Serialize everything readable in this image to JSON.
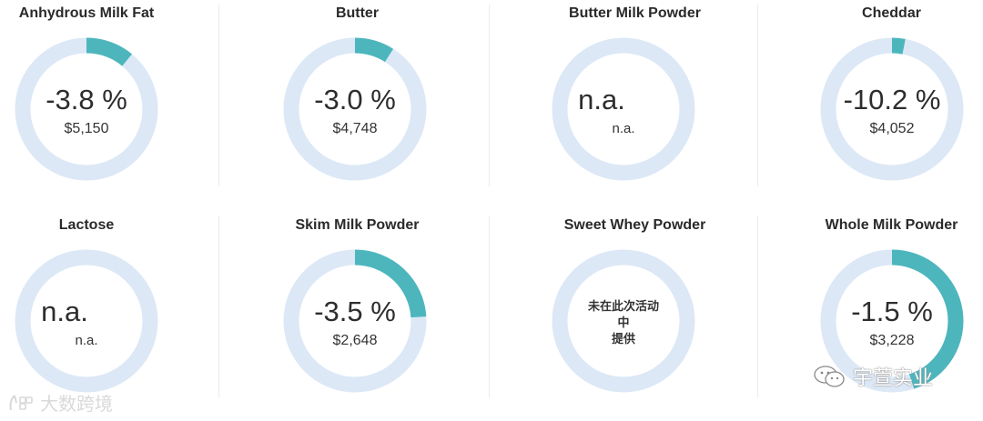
{
  "chart_data": [
    {
      "type": "donut",
      "title": "Anhydrous Milk Fat",
      "change_pct": -3.8,
      "change_label": "-3.8 %",
      "price": "$5,150"
    },
    {
      "type": "donut",
      "title": "Butter",
      "change_pct": -3.0,
      "change_label": "-3.0 %",
      "price": "$4,748"
    },
    {
      "type": "donut",
      "title": "Butter Milk Powder",
      "change_pct": null,
      "change_label": "n.a.",
      "price": "n.a."
    },
    {
      "type": "donut",
      "title": "Cheddar",
      "change_pct": -10.2,
      "change_label": "-10.2 %",
      "price": "$4,052"
    },
    {
      "type": "donut",
      "title": "Lactose",
      "change_pct": null,
      "change_label": "n.a.",
      "price": "n.a."
    },
    {
      "type": "donut",
      "title": "Skim Milk Powder",
      "change_pct": -3.5,
      "change_label": "-3.5 %",
      "price": "$2,648"
    },
    {
      "type": "donut",
      "title": "Sweet Whey Powder",
      "change_pct": null,
      "change_label": "",
      "price": "",
      "note_lines": [
        "未在此次活动",
        "中",
        "提供"
      ]
    },
    {
      "type": "donut",
      "title": "Whole Milk Powder",
      "change_pct": -1.5,
      "change_label": "-1.5 %",
      "price": "$3,228"
    }
  ],
  "ring_fill_fraction": [
    0.11,
    0.09,
    0,
    0.03,
    0,
    0.24,
    0,
    0.45
  ],
  "colors": {
    "track": "#dce8f6",
    "fill": "#4db6bd"
  },
  "watermarks": {
    "left_text": "大数跨境",
    "right_text": "宇萱实业",
    "left_icon": "grid-logo-icon",
    "right_icon": "wechat-icon"
  }
}
